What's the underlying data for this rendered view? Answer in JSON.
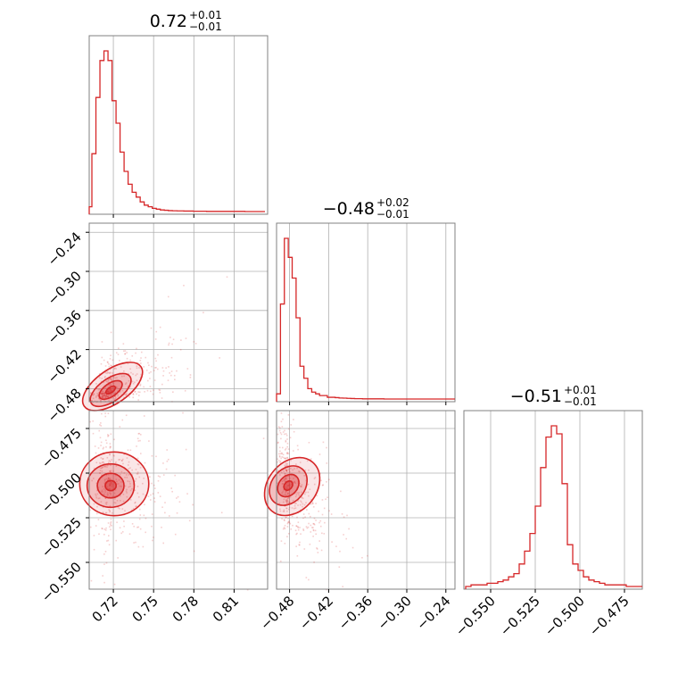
{
  "style": {
    "series_color": "#d62728",
    "grid_color": "#b0b0b0",
    "frame_color": "#808080"
  },
  "chart_data": {
    "type": "corner",
    "grid": true,
    "parameters": [
      {
        "title": {
          "value": "0.72",
          "plus": "+0.01",
          "minus": "−0.01"
        },
        "range": [
          0.702,
          0.835
        ],
        "ticks": [
          0.72,
          0.75,
          0.78,
          0.81
        ],
        "tick_labels": [
          "0.72",
          "0.75",
          "0.78",
          "0.81"
        ],
        "hist": {
          "x": [
            0.7025,
            0.7055,
            0.7085,
            0.7115,
            0.7145,
            0.7175,
            0.7205,
            0.7235,
            0.7265,
            0.7295,
            0.7325,
            0.7355,
            0.7385,
            0.7415,
            0.7445,
            0.7475,
            0.7505,
            0.7535,
            0.7565,
            0.7595,
            0.7625,
            0.7655,
            0.7695,
            0.7755,
            0.7835,
            0.7955,
            0.8105,
            0.8255
          ],
          "density": [
            0.03,
            0.36,
            0.71,
            0.94,
            1.0,
            0.94,
            0.69,
            0.55,
            0.37,
            0.25,
            0.17,
            0.12,
            0.09,
            0.06,
            0.04,
            0.03,
            0.02,
            0.015,
            0.01,
            0.008,
            0.006,
            0.005,
            0.004,
            0.003,
            0.002,
            0.001,
            0.001,
            0.0
          ]
        }
      },
      {
        "title": {
          "value": "−0.48",
          "plus": "+0.02",
          "minus": "−0.01"
        },
        "range": [
          -0.5,
          -0.226
        ],
        "ticks": [
          -0.48,
          -0.42,
          -0.36,
          -0.3,
          -0.24
        ],
        "tick_labels": [
          "−0.48",
          "−0.42",
          "−0.36",
          "−0.30",
          "−0.24"
        ],
        "hist": {
          "x": [
            -0.497,
            -0.491,
            -0.485,
            -0.479,
            -0.473,
            -0.467,
            -0.461,
            -0.455,
            -0.449,
            -0.443,
            -0.437,
            -0.431,
            -0.425,
            -0.419,
            -0.413,
            -0.407,
            -0.401,
            -0.395,
            -0.389,
            -0.383,
            -0.377,
            -0.371,
            -0.365,
            -0.35,
            -0.32,
            -0.29,
            -0.26,
            -0.235
          ],
          "density": [
            0.03,
            0.55,
            0.93,
            0.82,
            0.7,
            0.47,
            0.19,
            0.12,
            0.06,
            0.04,
            0.03,
            0.02,
            0.02,
            0.01,
            0.01,
            0.008,
            0.006,
            0.005,
            0.004,
            0.003,
            0.002,
            0.002,
            0.001,
            0.001,
            0.0,
            0.0,
            0.0,
            0.0
          ]
        }
      },
      {
        "title": {
          "value": "−0.51",
          "plus": "+0.01",
          "minus": "−0.01"
        },
        "range": [
          -0.565,
          -0.465
        ],
        "ticks": [
          -0.55,
          -0.525,
          -0.5,
          -0.475
        ],
        "tick_labels": [
          "−0.550",
          "−0.525",
          "−0.500",
          "−0.475"
        ],
        "hist": {
          "x": [
            -0.5625,
            -0.5595,
            -0.5565,
            -0.5535,
            -0.5505,
            -0.5475,
            -0.5445,
            -0.5415,
            -0.5385,
            -0.5355,
            -0.5325,
            -0.5295,
            -0.5265,
            -0.5235,
            -0.5205,
            -0.5175,
            -0.5145,
            -0.5115,
            -0.5085,
            -0.5055,
            -0.5025,
            -0.4995,
            -0.4965,
            -0.4935,
            -0.4905,
            -0.4875,
            -0.4845,
            -0.4815,
            -0.4785,
            -0.4755,
            -0.4725,
            -0.4695,
            -0.4665
          ],
          "density": [
            0.0,
            0.01,
            0.01,
            0.01,
            0.02,
            0.02,
            0.03,
            0.04,
            0.06,
            0.08,
            0.14,
            0.22,
            0.33,
            0.5,
            0.74,
            0.93,
            1.0,
            0.95,
            0.64,
            0.26,
            0.14,
            0.1,
            0.06,
            0.04,
            0.03,
            0.02,
            0.01,
            0.01,
            0.01,
            0.01,
            0.0,
            0.0,
            0.0
          ]
        }
      }
    ],
    "pairs": [
      {
        "x_param": 0,
        "y_param": 1,
        "peak": [
          0.718,
          -0.482
        ],
        "sigma": [
          0.009,
          0.013
        ],
        "corr": 0.6
      },
      {
        "x_param": 0,
        "y_param": 2,
        "peak": [
          0.718,
          -0.507
        ],
        "sigma": [
          0.009,
          0.009
        ],
        "corr": -0.1
      },
      {
        "x_param": 1,
        "y_param": 2,
        "peak": [
          -0.482,
          -0.507
        ],
        "sigma": [
          0.013,
          0.009
        ],
        "corr": -0.55
      }
    ]
  }
}
